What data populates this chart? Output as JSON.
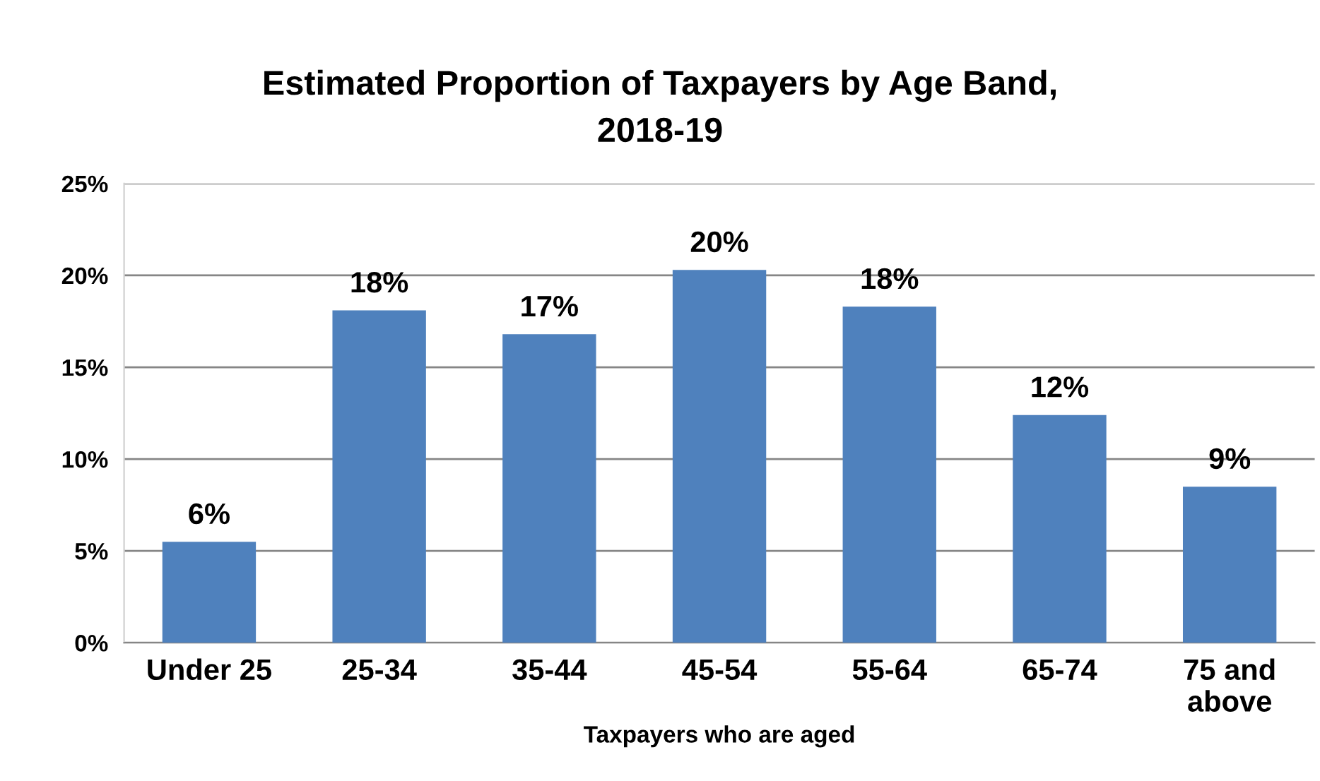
{
  "chart_data": {
    "type": "bar",
    "title": "Estimated Proportion of Taxpayers by Age Band,\n2018-19",
    "xlabel": "Taxpayers who are aged",
    "categories": [
      "Under 25",
      "25-34",
      "35-44",
      "45-54",
      "55-64",
      "65-74",
      "75 and\nabove"
    ],
    "values": [
      5.5,
      18.1,
      16.8,
      20.3,
      18.3,
      12.4,
      8.5
    ],
    "value_labels": [
      "6%",
      "18%",
      "17%",
      "20%",
      "18%",
      "12%",
      "9%"
    ],
    "color": "#4f81bd",
    "ylim": [
      0,
      25
    ],
    "yticks": [
      {
        "value": 0,
        "label": "0%"
      },
      {
        "value": 5,
        "label": "5%"
      },
      {
        "value": 10,
        "label": "10%"
      },
      {
        "value": 15,
        "label": "15%"
      },
      {
        "value": 20,
        "label": "20%"
      },
      {
        "value": 25,
        "label": "25%"
      }
    ],
    "grid": "y",
    "legend": false
  }
}
